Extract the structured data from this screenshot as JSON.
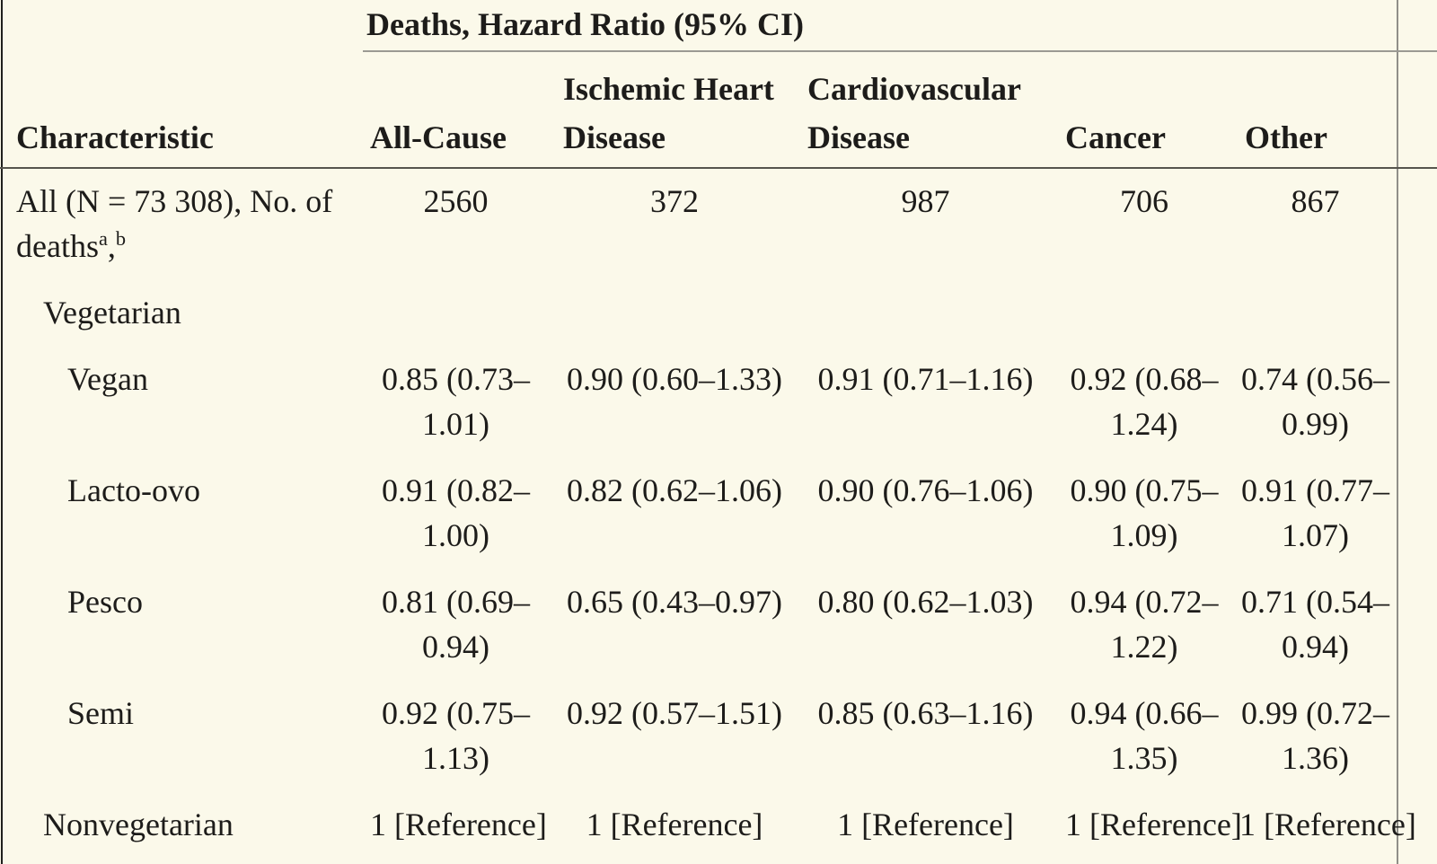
{
  "colors": {
    "background": "#FBF9EA",
    "text": "#1d1c1a",
    "spanner_rule": "#9b9a93",
    "header_rule": "#56554e",
    "left_border": "#1f1f1d",
    "right_border": "#908f89"
  },
  "table": {
    "spanner": "Deaths, Hazard Ratio (95% CI)",
    "columns": [
      "Characteristic",
      "All-Cause",
      "Ischemic Heart Disease",
      "Cardiovascular Disease",
      "Cancer",
      "Other"
    ],
    "rows": [
      {
        "label": "All (N = 73 308), No. of deaths",
        "sups": [
          "a",
          "b"
        ],
        "indent": 0,
        "values": [
          "2560",
          "372",
          "987",
          "706",
          "867"
        ]
      },
      {
        "label": "Vegetarian",
        "indent": 1,
        "values": [
          "",
          "",
          "",
          "",
          ""
        ]
      },
      {
        "label": "Vegan",
        "indent": 2,
        "values": [
          "0.85 (0.73–1.01)",
          "0.90 (0.60–1.33)",
          "0.91 (0.71–1.16)",
          "0.92 (0.68–1.24)",
          "0.74 (0.56–0.99)"
        ]
      },
      {
        "label": "Lacto-ovo",
        "indent": 2,
        "values": [
          "0.91 (0.82–1.00)",
          "0.82 (0.62–1.06)",
          "0.90 (0.76–1.06)",
          "0.90 (0.75–1.09)",
          "0.91 (0.77–1.07)"
        ]
      },
      {
        "label": "Pesco",
        "indent": 2,
        "values": [
          "0.81 (0.69–0.94)",
          "0.65 (0.43–0.97)",
          "0.80 (0.62–1.03)",
          "0.94 (0.72–1.22)",
          "0.71 (0.54–0.94)"
        ]
      },
      {
        "label": "Semi",
        "indent": 2,
        "values": [
          "0.92 (0.75–1.13)",
          "0.92 (0.57–1.51)",
          "0.85 (0.63–1.16)",
          "0.94 (0.66–1.35)",
          "0.99 (0.72–1.36)"
        ]
      },
      {
        "label": "Nonvegetarian",
        "indent": 1,
        "values": [
          "1 [Reference]",
          "1 [Reference]",
          "1 [Reference]",
          "1 [Reference]",
          "1 [Reference]"
        ]
      }
    ]
  }
}
